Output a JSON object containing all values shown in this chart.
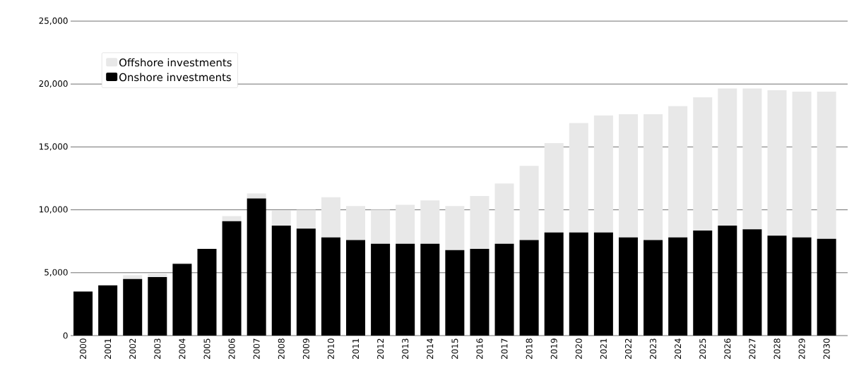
{
  "chart_data": {
    "type": "bar",
    "stacked": true,
    "categories": [
      "2000",
      "2001",
      "2002",
      "2003",
      "2004",
      "2005",
      "2006",
      "2007",
      "2008",
      "2009",
      "2010",
      "2011",
      "2012",
      "2013",
      "2014",
      "2015",
      "2016",
      "2017",
      "2018",
      "2019",
      "2020",
      "2021",
      "2022",
      "2023",
      "2024",
      "2025",
      "2026",
      "2027",
      "2028",
      "2029",
      "2030"
    ],
    "series": [
      {
        "name": "Onshore investments",
        "color": "#000000",
        "values": [
          3500,
          4000,
          4500,
          4650,
          5700,
          6900,
          9100,
          10900,
          8750,
          8500,
          7800,
          7600,
          7300,
          7300,
          7300,
          6800,
          6900,
          7300,
          7600,
          8200,
          8200,
          8200,
          7800,
          7600,
          7800,
          8350,
          8750,
          8450,
          7950,
          7800,
          7700
        ]
      },
      {
        "name": "Offshore investments",
        "color": "#e8e8e8",
        "values": [
          0,
          0,
          300,
          250,
          100,
          0,
          400,
          400,
          1200,
          1500,
          3200,
          2700,
          2700,
          3100,
          3450,
          3500,
          4200,
          4800,
          5900,
          7100,
          8700,
          9300,
          9800,
          10000,
          10450,
          10600,
          10900,
          11200,
          11550,
          11600,
          11700
        ]
      }
    ],
    "ylim": [
      0,
      25000
    ],
    "yticks": [
      0,
      {
        "value": 5000,
        "label": "5,000"
      },
      {
        "value": 10000,
        "label": "10,000"
      },
      {
        "value": 15000,
        "label": "15,000"
      },
      {
        "value": 20000,
        "label": "20,000"
      },
      {
        "value": 25000,
        "label": "25,000"
      }
    ],
    "grid": "y",
    "legend": "top left"
  }
}
